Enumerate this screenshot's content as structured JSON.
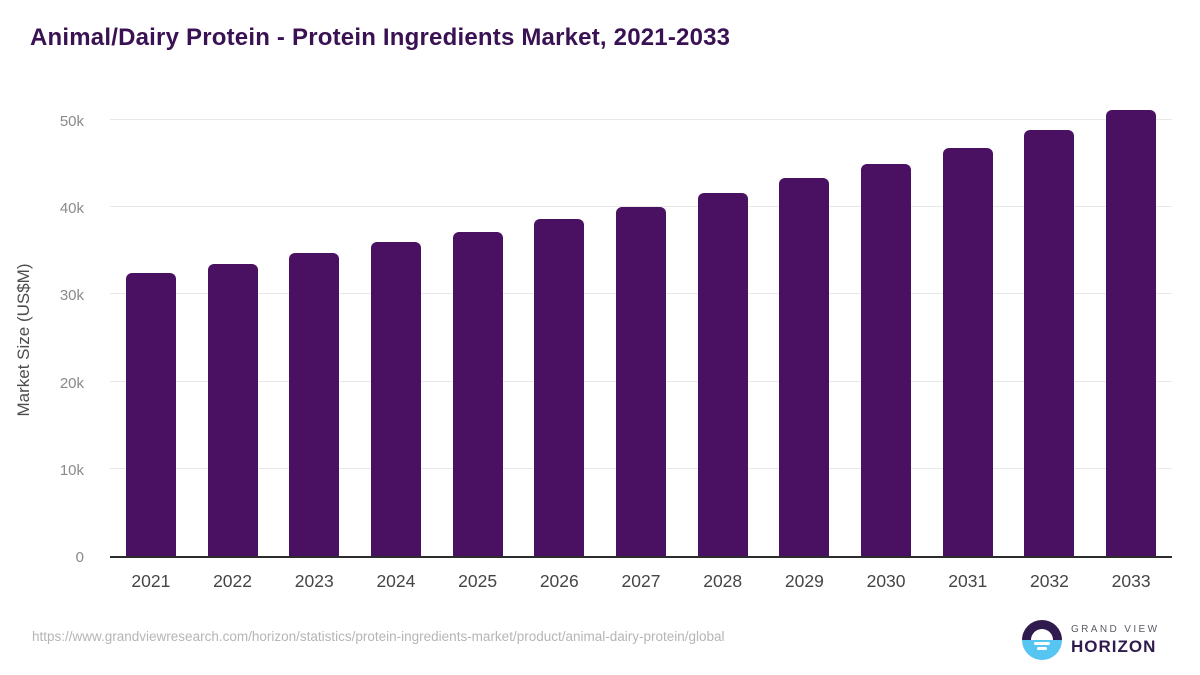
{
  "header": {
    "title": "Animal/Dairy Protein - Protein Ingredients Market, 2021-2033"
  },
  "chart_data": {
    "type": "bar",
    "title": "Animal/Dairy Protein - Protein Ingredients Market, 2021-2033",
    "categories": [
      "2021",
      "2022",
      "2023",
      "2024",
      "2025",
      "2026",
      "2027",
      "2028",
      "2029",
      "2030",
      "2031",
      "2032",
      "2033"
    ],
    "values": [
      32400,
      33500,
      34700,
      36000,
      37200,
      38600,
      40000,
      41600,
      43300,
      45000,
      46800,
      48800,
      51200
    ],
    "xlabel": "",
    "ylabel": "Market Size (US$M)",
    "ylim": [
      0,
      50000
    ],
    "yticks": [
      {
        "value": 0,
        "label": "0"
      },
      {
        "value": 10000,
        "label": "10k"
      },
      {
        "value": 20000,
        "label": "20k"
      },
      {
        "value": 30000,
        "label": "30k"
      },
      {
        "value": 40000,
        "label": "40k"
      },
      {
        "value": 50000,
        "label": "50k"
      }
    ],
    "grid": "horizontal",
    "legend": "none",
    "bar_color": "#4a1162",
    "gridline_color": "#e8e8e8",
    "axis_line_color": "#2c2c2c"
  },
  "footer": {
    "source_url": "https://www.grandviewresearch.com/horizon/statistics/protein-ingredients-market/product/animal-dairy-protein/global",
    "logo": {
      "line1": "GRAND VIEW",
      "line2": "HORIZON",
      "icon": "horizon-sun-icon",
      "purple": "#2f1b4d",
      "blue": "#56c5f2"
    }
  }
}
